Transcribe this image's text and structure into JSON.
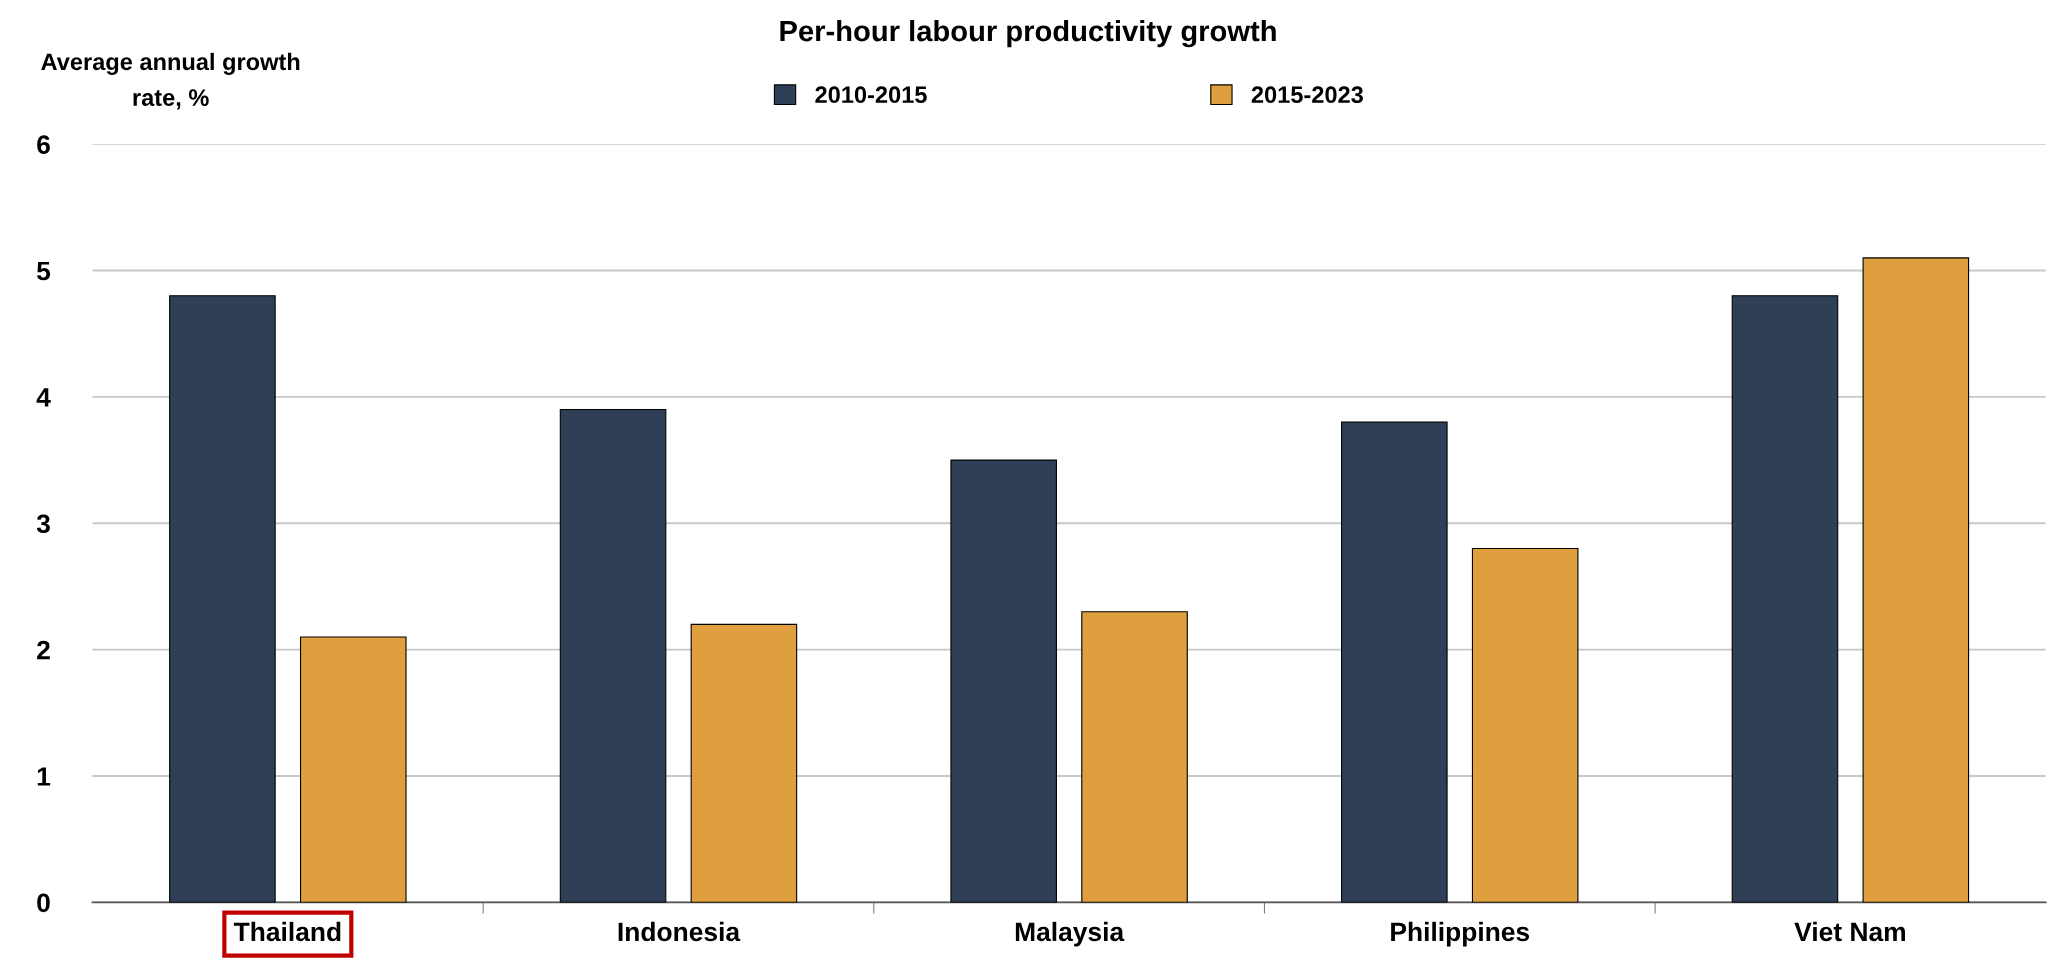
{
  "chart_data": {
    "type": "bar",
    "title": "Per-hour labour productivity growth",
    "ylabel": "Average annual growth\nrate, %",
    "categories": [
      "Thailand",
      "Indonesia",
      "Malaysia",
      "Philippines",
      "Viet Nam"
    ],
    "series": [
      {
        "name": "2010-2015",
        "color": "#2e3f56",
        "values": [
          4.8,
          3.9,
          3.5,
          3.8,
          4.8
        ]
      },
      {
        "name": "2015-2023",
        "color": "#e09f3e",
        "values": [
          2.1,
          2.2,
          2.3,
          2.8,
          5.1
        ]
      }
    ],
    "ylim": [
      0,
      6
    ],
    "yticks": [
      0,
      1,
      2,
      3,
      4,
      5,
      6
    ],
    "grid": "y",
    "legend": "top"
  }
}
